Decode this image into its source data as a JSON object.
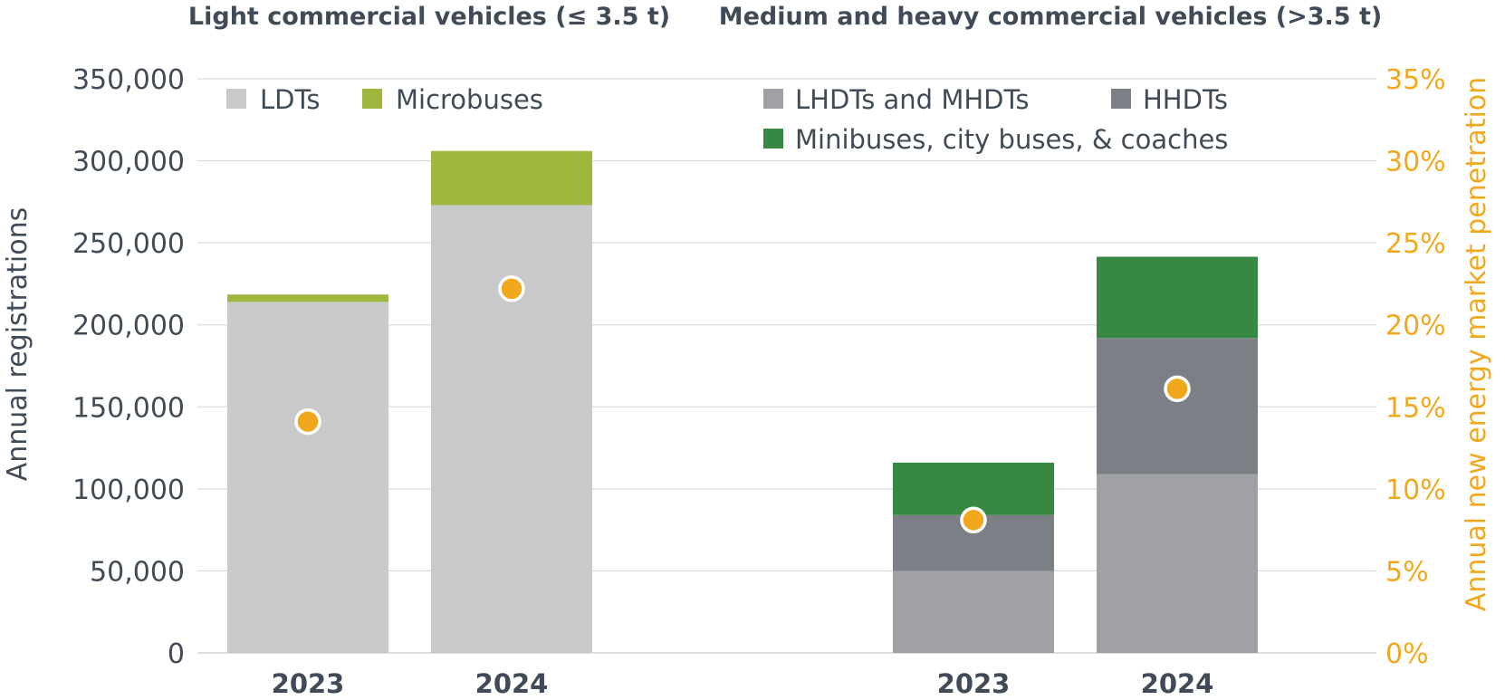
{
  "chart_data": {
    "type": "bar",
    "stacked": true,
    "panels": [
      {
        "title": "Light commercial vehicles (≤ 3.5 t)",
        "categories": [
          "2023",
          "2024"
        ],
        "series": [
          {
            "name": "LDTs",
            "color": "#c8c9cb",
            "values": [
              214000,
              273000
            ]
          },
          {
            "name": "Microbuses",
            "color": "#9fb73e",
            "values": [
              4500,
              33000
            ]
          }
        ],
        "penetration": {
          "color": "#f2a81d",
          "values": [
            14.1,
            22.2
          ]
        }
      },
      {
        "title": "Medium and heavy commercial vehicles (>3.5 t)",
        "categories": [
          "2023",
          "2024"
        ],
        "series": [
          {
            "name": "LHDTs and MHDTs",
            "color": "#a0a1a5",
            "values": [
              50000,
              109000
            ]
          },
          {
            "name": "HHDTs",
            "color": "#7d7f86",
            "values": [
              34000,
              83000
            ]
          },
          {
            "name": "Minibuses, city buses, & coaches",
            "color": "#378843",
            "values": [
              32000,
              49500
            ]
          }
        ],
        "penetration": {
          "color": "#f2a81d",
          "values": [
            8.1,
            16.1
          ]
        }
      }
    ],
    "ylabel": "Annual registrations",
    "y2label": "Annual new energy market penetration",
    "ylim": [
      0,
      350000
    ],
    "y2lim": [
      0,
      35
    ],
    "yticks": [
      "0",
      "50,000",
      "100,000",
      "150,000",
      "200,000",
      "250,000",
      "300,000",
      "350,000"
    ],
    "y2ticks": [
      "0%",
      "5%",
      "10%",
      "15%",
      "20%",
      "25%",
      "30%",
      "35%"
    ],
    "grid": true,
    "legend_placement": "top, inside each panel"
  }
}
